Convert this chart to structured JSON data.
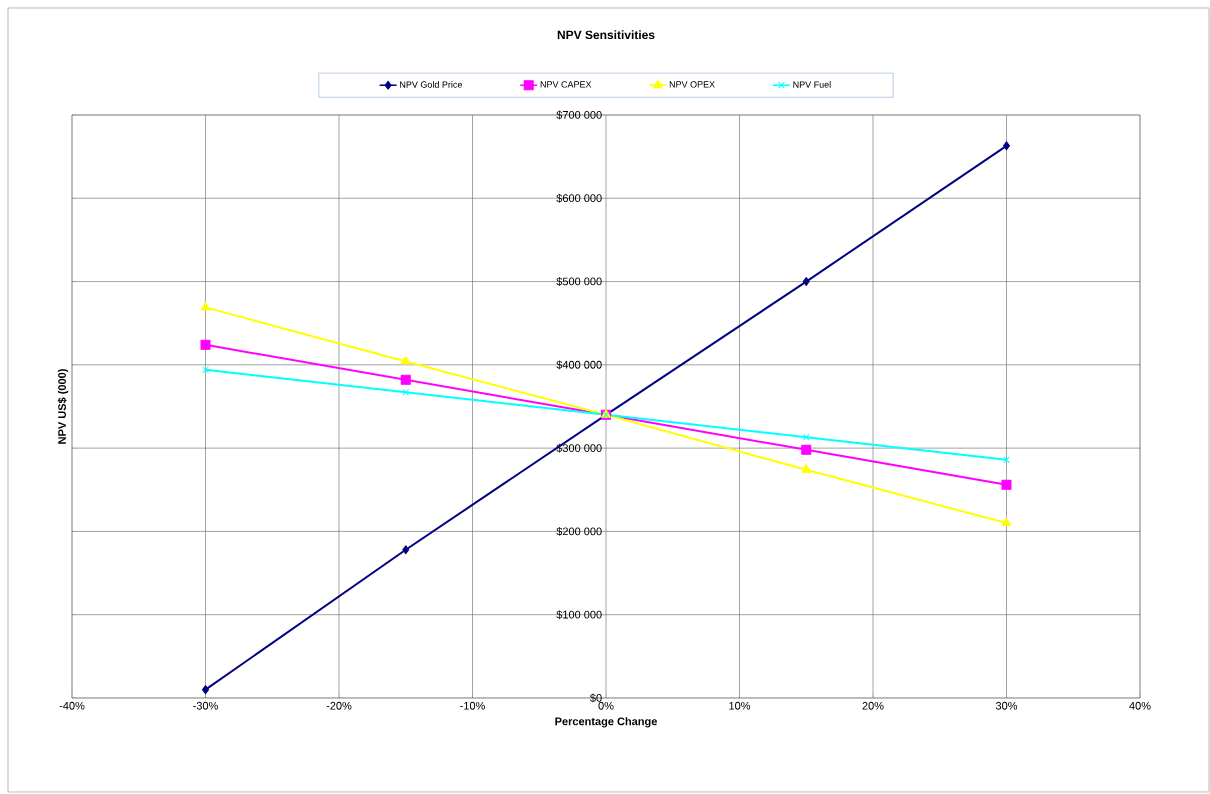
{
  "chart_data": {
    "type": "line",
    "title": "NPV Sensitivities",
    "xlabel": "Percentage Change",
    "ylabel": "NPV US$ (000)",
    "x": [
      -30,
      -15,
      0,
      15,
      30
    ],
    "series": [
      {
        "name": "NPV Gold Price",
        "color": "#000080",
        "marker": "diamond",
        "values": [
          10000,
          178000,
          340000,
          500000,
          663000
        ]
      },
      {
        "name": "NPV CAPEX",
        "color": "#ff00ff",
        "marker": "square",
        "values": [
          424000,
          382000,
          340000,
          298000,
          256000
        ]
      },
      {
        "name": "NPV OPEX",
        "color": "#ffff00",
        "marker": "triangle",
        "values": [
          469000,
          404000,
          340000,
          274000,
          210000
        ]
      },
      {
        "name": "NPV Fuel",
        "color": "#00ffff",
        "marker": "cross",
        "values": [
          394000,
          367000,
          340000,
          313000,
          286000
        ]
      }
    ],
    "xlim": [
      -40,
      40
    ],
    "xticks": [
      {
        "value": -40,
        "label": "-40%"
      },
      {
        "value": -30,
        "label": "-30%"
      },
      {
        "value": -20,
        "label": "-20%"
      },
      {
        "value": -10,
        "label": "-10%"
      },
      {
        "value": 0,
        "label": "0%"
      },
      {
        "value": 10,
        "label": "10%"
      },
      {
        "value": 20,
        "label": "20%"
      },
      {
        "value": 30,
        "label": "30%"
      },
      {
        "value": 40,
        "label": "40%"
      }
    ],
    "ylim": [
      0,
      700000
    ],
    "yticks": [
      {
        "value": 0,
        "label": "$0"
      },
      {
        "value": 100000,
        "label": "$100 000"
      },
      {
        "value": 200000,
        "label": "$200 000"
      },
      {
        "value": 300000,
        "label": "$300 000"
      },
      {
        "value": 400000,
        "label": "$400 000"
      },
      {
        "value": 500000,
        "label": "$500 000"
      },
      {
        "value": 600000,
        "label": "$600 000"
      },
      {
        "value": 700000,
        "label": "$700 000"
      }
    ],
    "grid": true,
    "legend": "top"
  }
}
